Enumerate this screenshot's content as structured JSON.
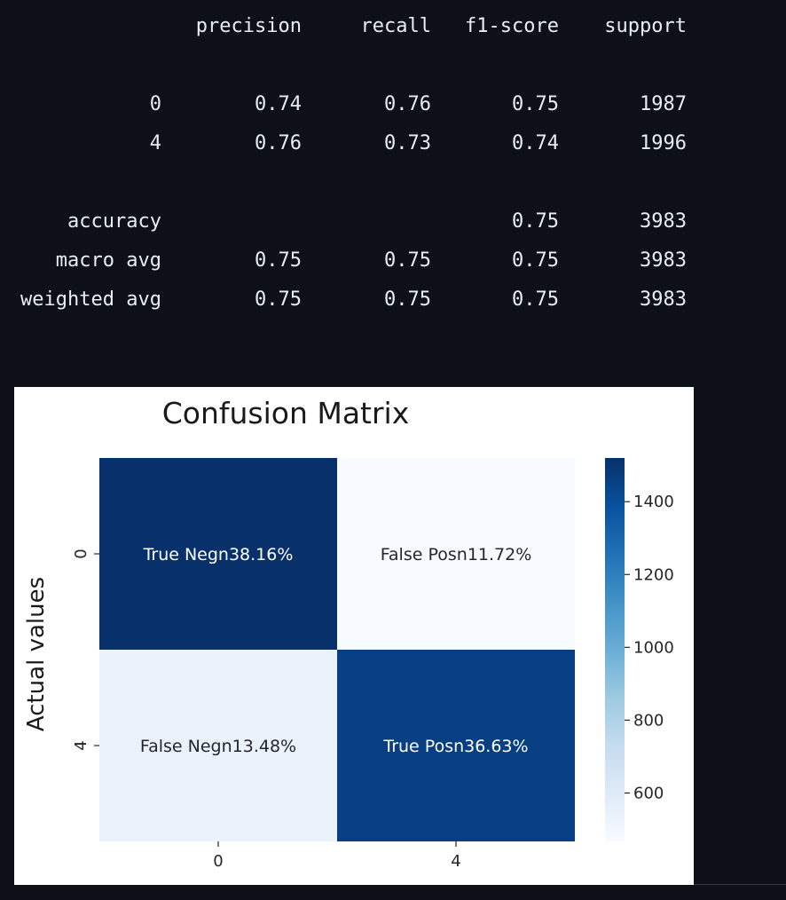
{
  "report": {
    "headers": [
      "precision",
      "recall",
      "f1-score",
      "support"
    ],
    "rows": [
      {
        "label": "0",
        "values": [
          "0.74",
          "0.76",
          "0.75",
          "1987"
        ]
      },
      {
        "label": "4",
        "values": [
          "0.76",
          "0.73",
          "0.74",
          "1996"
        ]
      },
      {
        "label": "accuracy",
        "values": [
          "",
          "",
          "0.75",
          "3983"
        ]
      },
      {
        "label": "macro avg",
        "values": [
          "0.75",
          "0.75",
          "0.75",
          "3983"
        ]
      },
      {
        "label": "weighted avg",
        "values": [
          "0.75",
          "0.75",
          "0.75",
          "3983"
        ]
      }
    ]
  },
  "chart_data": {
    "type": "heatmap",
    "title": "Confusion Matrix",
    "xlabel": "",
    "ylabel": "Actual values",
    "x_tick_labels": [
      "0",
      "4"
    ],
    "y_tick_labels": [
      "0",
      "4"
    ],
    "values": [
      [
        1520,
        467
      ],
      [
        537,
        1459
      ]
    ],
    "annotations": [
      [
        "True Negn38.16%",
        "False Posn11.72%"
      ],
      [
        "False Negn13.48%",
        "True Posn36.63%"
      ]
    ],
    "colorbar": {
      "range": [
        467,
        1520
      ],
      "ticks": [
        600,
        800,
        1000,
        1200,
        1400
      ],
      "tick_labels": [
        "600",
        "800",
        "1000",
        "1200",
        "1400"
      ]
    },
    "colormap": [
      "#f7fbff",
      "#deebf7",
      "#c6dbef",
      "#9ecae1",
      "#6baed6",
      "#4292c6",
      "#2171b5",
      "#08519c",
      "#08306b"
    ],
    "grid": false
  }
}
